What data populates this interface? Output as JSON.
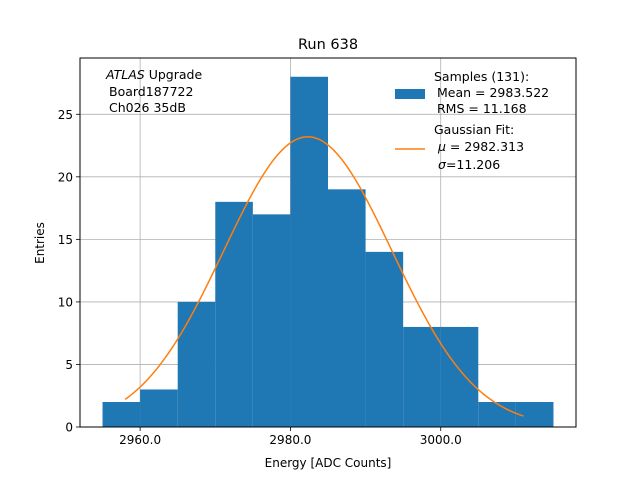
{
  "chart_data": {
    "type": "histogram",
    "title": "Run 638",
    "xlabel": "Energy [ADC Counts]",
    "ylabel": "Entries",
    "xlim": [
      2952.0,
      3018.0
    ],
    "ylim": [
      0,
      29.5
    ],
    "xticks": [
      2960.0,
      2980.0,
      3000.0
    ],
    "xtick_labels": [
      "2960.0",
      "2980.0",
      "3000.0"
    ],
    "yticks": [
      0,
      5,
      10,
      15,
      20,
      25
    ],
    "ytick_labels": [
      "0",
      "5",
      "10",
      "15",
      "20",
      "25"
    ],
    "grid": true,
    "annotation": {
      "line1_italic": "ATLAS",
      "line1_rest": " Upgrade",
      "line2": "Board187722",
      "line3": "Ch026 35dB"
    },
    "bins": [
      {
        "x0": 2955.0,
        "x1": 2960.0,
        "count": 2
      },
      {
        "x0": 2960.0,
        "x1": 2965.0,
        "count": 3
      },
      {
        "x0": 2965.0,
        "x1": 2970.0,
        "count": 10
      },
      {
        "x0": 2970.0,
        "x1": 2975.0,
        "count": 18
      },
      {
        "x0": 2975.0,
        "x1": 2980.0,
        "count": 17
      },
      {
        "x0": 2980.0,
        "x1": 2985.0,
        "count": 28
      },
      {
        "x0": 2985.0,
        "x1": 2990.0,
        "count": 19
      },
      {
        "x0": 2990.0,
        "x1": 2995.0,
        "count": 14
      },
      {
        "x0": 2995.0,
        "x1": 3000.0,
        "count": 8
      },
      {
        "x0": 3000.0,
        "x1": 3005.0,
        "count": 8
      },
      {
        "x0": 3005.0,
        "x1": 3010.0,
        "count": 2
      },
      {
        "x0": 3010.0,
        "x1": 3015.0,
        "count": 2
      }
    ],
    "fit": {
      "mu": 2982.313,
      "sigma": 11.206,
      "amplitude": 23.2,
      "x_range": [
        2958.0,
        3011.0
      ]
    },
    "legend": {
      "position": "top-right",
      "samples_line1": "Samples (131):",
      "samples_line2": "Mean = 2983.522",
      "samples_line3": "RMS = 11.168",
      "fit_line1": "Gaussian Fit:",
      "fit_mu_symbol": "μ",
      "fit_mu_value": " = 2982.313",
      "fit_sigma_symbol": "σ",
      "fit_sigma_value": "=11.206"
    },
    "colors": {
      "bars": "#1f77b4",
      "fit": "#ff7f0e",
      "grid": "#b0b0b0",
      "axes": "#000000"
    }
  }
}
